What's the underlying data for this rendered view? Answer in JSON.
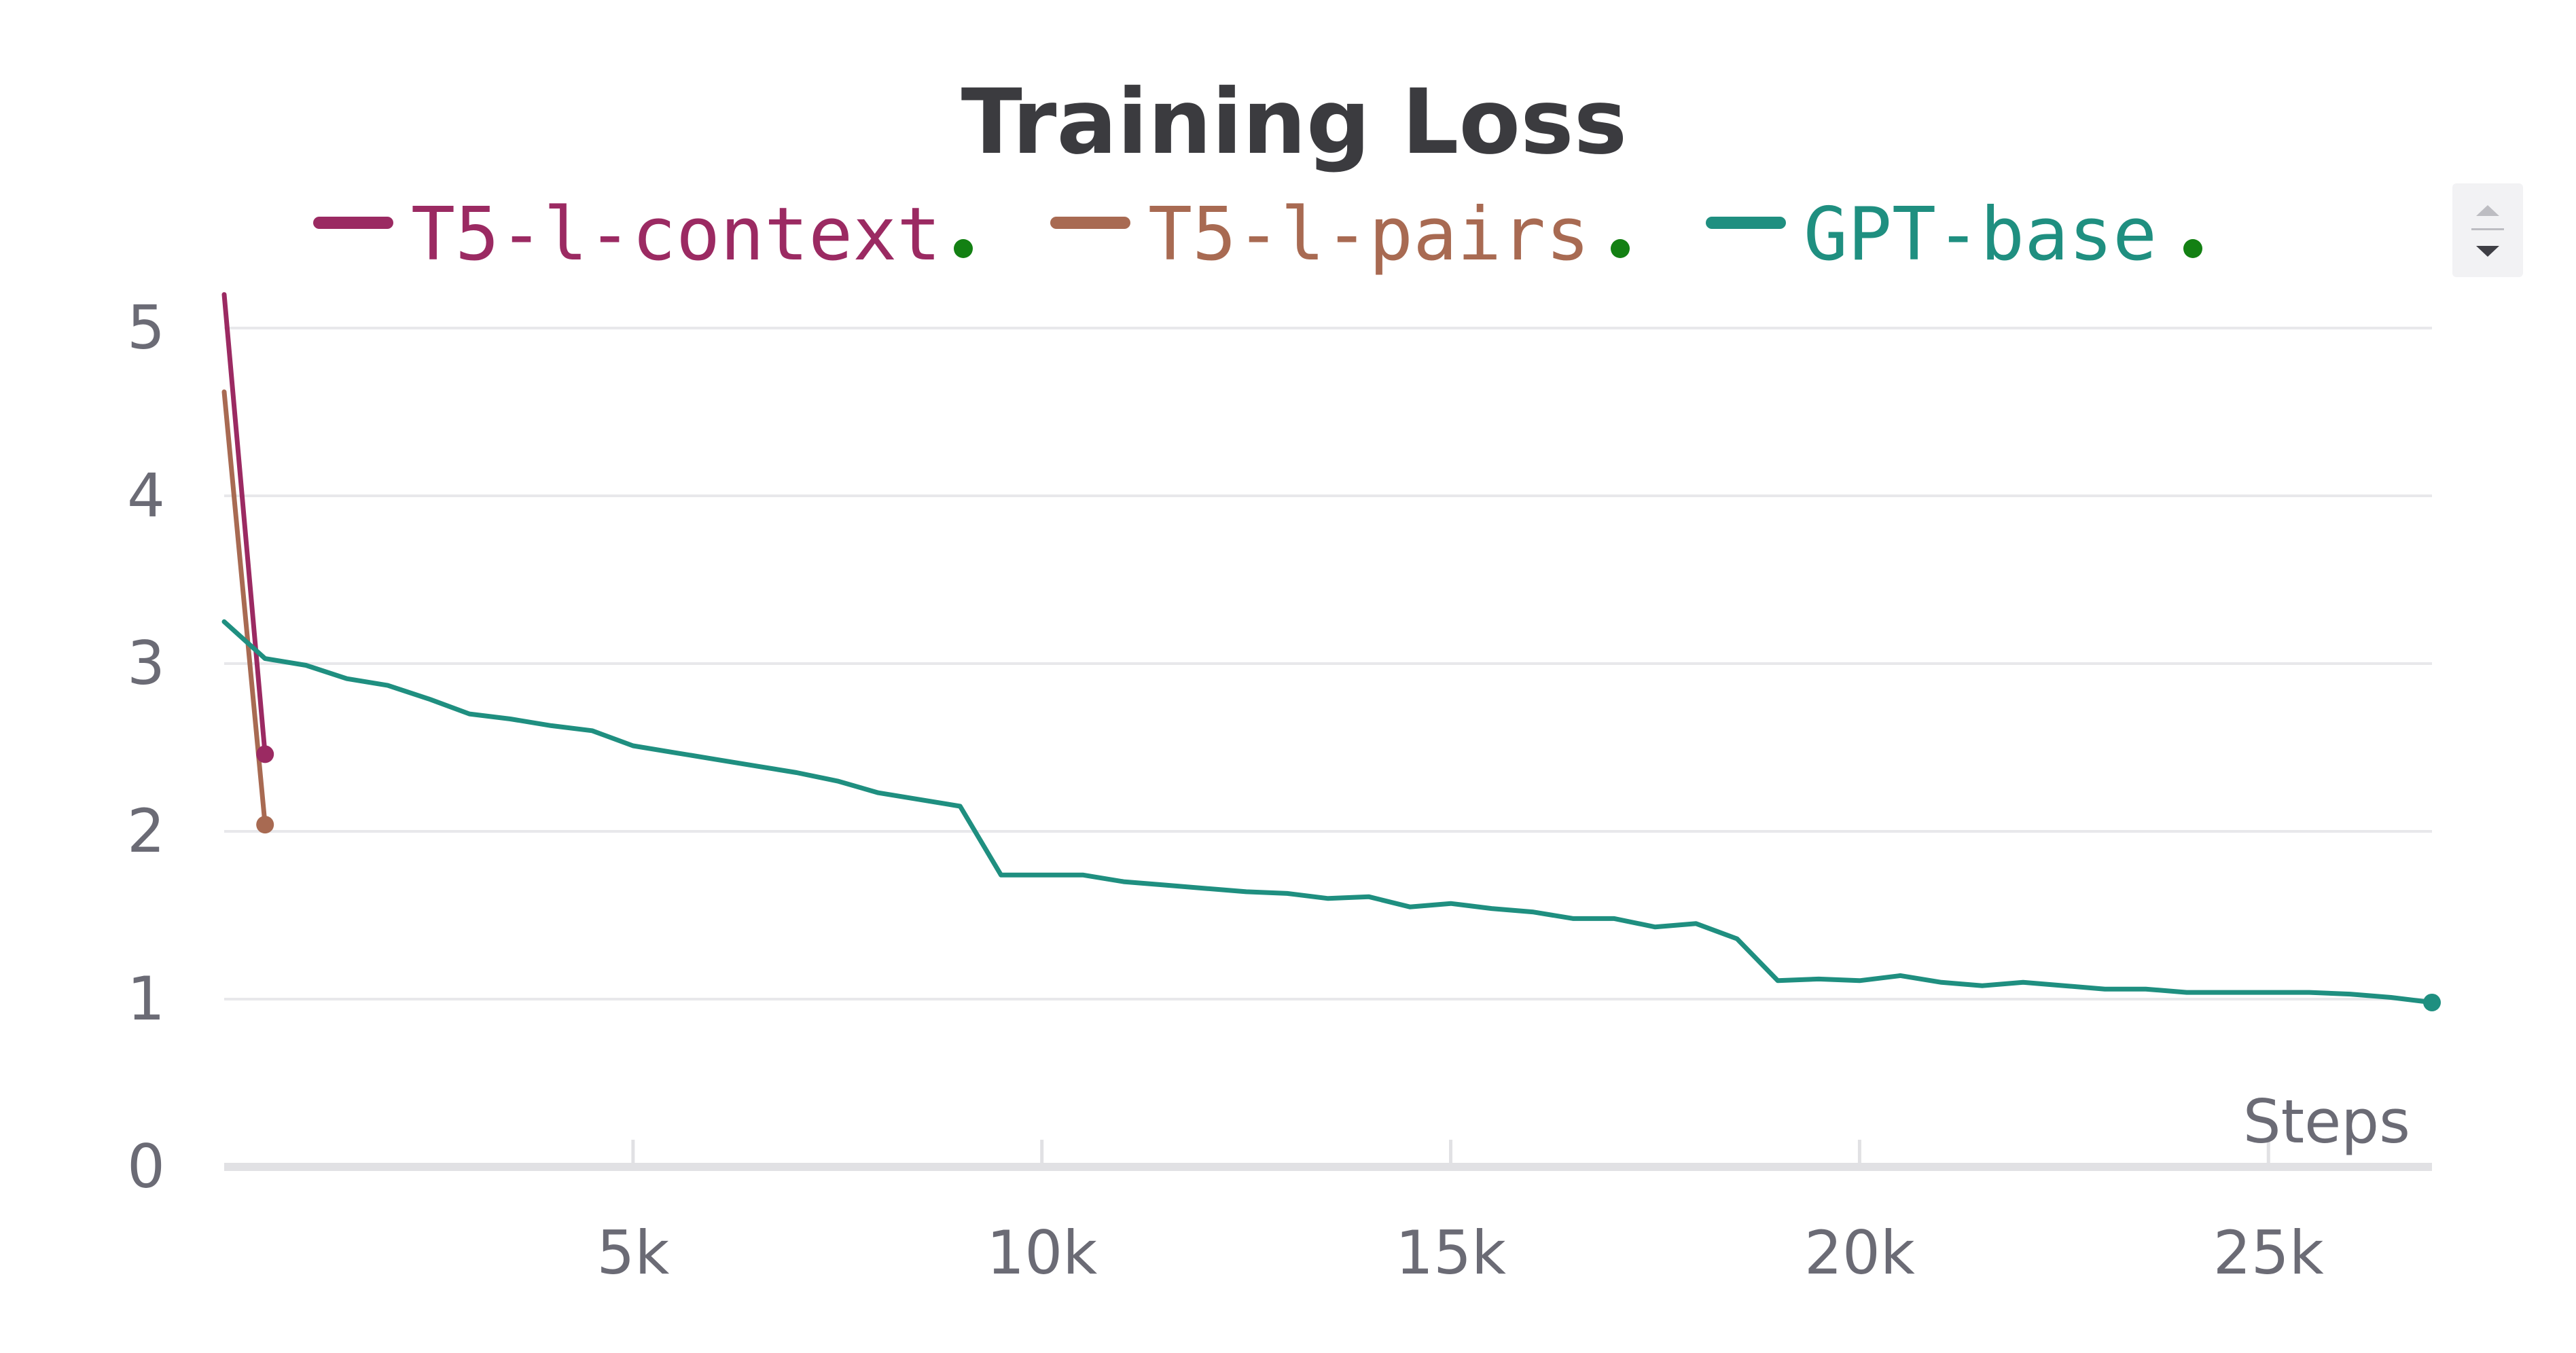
{
  "chart_data": {
    "type": "line",
    "title": "Training Loss",
    "xlabel": "Steps",
    "ylabel": "",
    "xlim": [
      0,
      27000
    ],
    "ylim": [
      0,
      5
    ],
    "grid": true,
    "legend_position": "top",
    "x_ticks": [
      5000,
      10000,
      15000,
      20000,
      25000
    ],
    "x_tick_labels": [
      "5k",
      "10k",
      "15k",
      "20k",
      "25k"
    ],
    "y_ticks": [
      0,
      1,
      2,
      3,
      4,
      5
    ],
    "y_tick_labels": [
      "0",
      "1",
      "2",
      "3",
      "4",
      "5"
    ],
    "series": [
      {
        "name": "T5-l-context",
        "color": "#9b2a62",
        "x": [
          0,
          500
        ],
        "y": [
          5.2,
          2.46
        ]
      },
      {
        "name": "T5-l-pairs",
        "color": "#a86a52",
        "x": [
          0,
          500
        ],
        "y": [
          4.62,
          2.04
        ]
      },
      {
        "name": "GPT-base",
        "color": "#1f8f80",
        "x": [
          0,
          500,
          1000,
          1500,
          2000,
          2500,
          3000,
          3500,
          4000,
          4500,
          5000,
          5500,
          6000,
          6500,
          7000,
          7500,
          8000,
          8500,
          9000,
          9500,
          10000,
          10500,
          11000,
          11500,
          12000,
          12500,
          13000,
          13500,
          14000,
          14500,
          15000,
          15500,
          16000,
          16500,
          17000,
          17500,
          18000,
          18500,
          19000,
          19500,
          20000,
          20500,
          21000,
          21500,
          22000,
          22500,
          23000,
          23500,
          24000,
          24500,
          25000,
          25500,
          26000,
          26500,
          27000
        ],
        "y": [
          3.25,
          3.03,
          2.99,
          2.91,
          2.87,
          2.79,
          2.7,
          2.67,
          2.63,
          2.6,
          2.51,
          2.47,
          2.43,
          2.39,
          2.35,
          2.3,
          2.23,
          2.19,
          2.15,
          1.74,
          1.74,
          1.74,
          1.7,
          1.68,
          1.66,
          1.64,
          1.63,
          1.6,
          1.61,
          1.55,
          1.57,
          1.54,
          1.52,
          1.48,
          1.48,
          1.43,
          1.45,
          1.36,
          1.11,
          1.12,
          1.11,
          1.14,
          1.1,
          1.08,
          1.1,
          1.08,
          1.06,
          1.06,
          1.04,
          1.04,
          1.04,
          1.04,
          1.03,
          1.01,
          0.98
        ]
      }
    ]
  },
  "legend_dot_color": "#138013",
  "scroll_control": {
    "up_icon": "triangle-up-icon",
    "down_icon": "triangle-down-icon"
  }
}
